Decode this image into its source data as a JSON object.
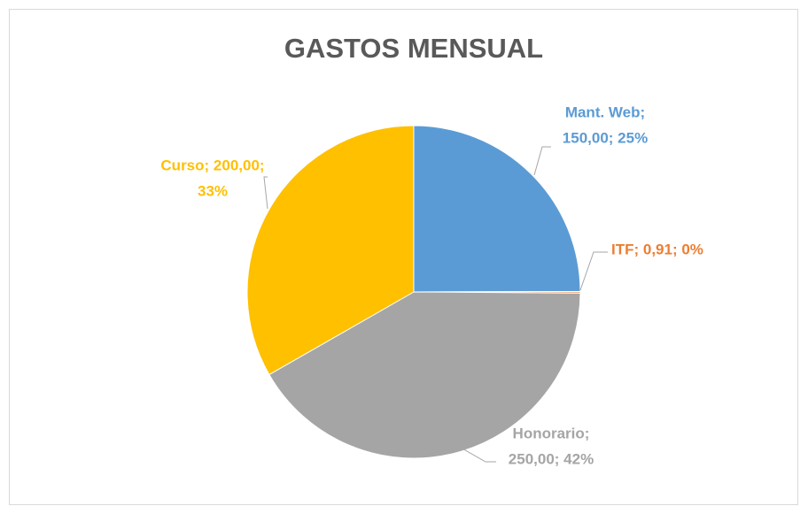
{
  "chart_data": {
    "type": "pie",
    "title": "GASTOS MENSUAL",
    "categories": [
      "Mant. Web",
      "ITF",
      "Honorario",
      "Curso"
    ],
    "values": [
      150,
      0.91,
      250,
      200
    ],
    "value_labels": [
      [
        "Mant. Web;",
        "150,00; 25%"
      ],
      [
        "ITF; 0,91; 0%"
      ],
      [
        "Honorario;",
        "250,00; 42%"
      ],
      [
        "Curso; 200,00;",
        "33%"
      ]
    ],
    "colors": [
      "#5b9bd5",
      "#ed7d31",
      "#a5a5a5",
      "#ffc000"
    ]
  }
}
